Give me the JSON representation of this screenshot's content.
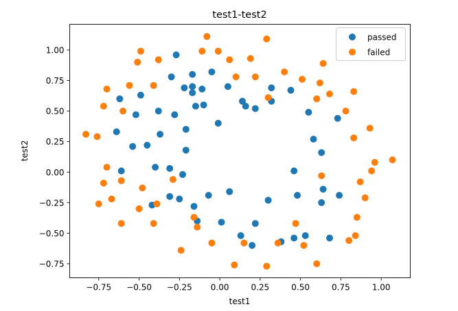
{
  "chart_data": {
    "type": "scatter",
    "title": "test1-test2",
    "xlabel": "test1",
    "ylabel": "test2",
    "xlim": [
      -0.93,
      1.18
    ],
    "ylim": [
      -0.865,
      1.21
    ],
    "xticks": [
      -0.75,
      -0.5,
      -0.25,
      0.0,
      0.25,
      0.5,
      0.75,
      1.0
    ],
    "yticks": [
      -0.75,
      -0.5,
      -0.25,
      0.0,
      0.25,
      0.5,
      0.75,
      1.0
    ],
    "xtick_labels": [
      "−0.75",
      "−0.50",
      "−0.25",
      "0.00",
      "0.25",
      "0.50",
      "0.75",
      "1.00"
    ],
    "ytick_labels": [
      "−0.75",
      "−0.50",
      "−0.25",
      "0.00",
      "0.25",
      "0.50",
      "0.75",
      "1.00"
    ],
    "grid": false,
    "legend_position": "top-right",
    "series": [
      {
        "name": "passed",
        "color": "#1f77b4",
        "points": [
          [
            -0.27,
            0.96
          ],
          [
            -0.05,
            0.82
          ],
          [
            -0.3,
            0.78
          ],
          [
            -0.17,
            0.8
          ],
          [
            -0.22,
            0.69
          ],
          [
            -0.17,
            0.7
          ],
          [
            -0.11,
            0.68
          ],
          [
            0.05,
            0.7
          ],
          [
            -0.17,
            0.65
          ],
          [
            -0.49,
            0.63
          ],
          [
            -0.62,
            0.6
          ],
          [
            -0.15,
            0.54
          ],
          [
            -0.1,
            0.55
          ],
          [
            -0.38,
            0.5
          ],
          [
            -0.52,
            0.47
          ],
          [
            -0.28,
            0.47
          ],
          [
            0.14,
            0.58
          ],
          [
            0.16,
            0.54
          ],
          [
            0.22,
            0.52
          ],
          [
            0.32,
            0.69
          ],
          [
            0.44,
            0.67
          ],
          [
            0.32,
            0.58
          ],
          [
            0.55,
            0.49
          ],
          [
            0.73,
            0.44
          ],
          [
            -0.01,
            0.4
          ],
          [
            -0.21,
            0.35
          ],
          [
            -0.64,
            0.33
          ],
          [
            -0.37,
            0.31
          ],
          [
            -0.54,
            0.21
          ],
          [
            -0.45,
            0.22
          ],
          [
            -0.21,
            0.18
          ],
          [
            0.58,
            0.27
          ],
          [
            0.63,
            0.16
          ],
          [
            -0.4,
            0.04
          ],
          [
            -0.61,
            0.01
          ],
          [
            -0.31,
            0.03
          ],
          [
            -0.23,
            -0.02
          ],
          [
            0.46,
            0.01
          ],
          [
            0.64,
            -0.14
          ],
          [
            -0.25,
            -0.22
          ],
          [
            -0.31,
            -0.2
          ],
          [
            -0.07,
            -0.19
          ],
          [
            0.06,
            -0.16
          ],
          [
            0.3,
            -0.23
          ],
          [
            0.48,
            -0.19
          ],
          [
            0.63,
            -0.25
          ],
          [
            0.74,
            -0.19
          ],
          [
            -0.42,
            -0.27
          ],
          [
            -0.16,
            -0.28
          ],
          [
            -0.14,
            -0.4
          ],
          [
            0.01,
            -0.41
          ],
          [
            0.22,
            -0.42
          ],
          [
            0.13,
            -0.52
          ],
          [
            0.2,
            -0.6
          ],
          [
            0.38,
            -0.57
          ],
          [
            0.46,
            -0.54
          ],
          [
            0.53,
            -0.52
          ],
          [
            0.68,
            -0.54
          ]
        ]
      },
      {
        "name": "failed",
        "color": "#ff7f0e",
        "points": [
          [
            -0.08,
            1.11
          ],
          [
            0.29,
            1.09
          ],
          [
            -0.49,
            0.99
          ],
          [
            -0.11,
            0.99
          ],
          [
            -0.01,
            0.99
          ],
          [
            0.19,
            0.93
          ],
          [
            -0.51,
            0.9
          ],
          [
            -0.38,
            0.92
          ],
          [
            0.06,
            0.92
          ],
          [
            0.64,
            0.89
          ],
          [
            0.4,
            0.82
          ],
          [
            0.1,
            0.78
          ],
          [
            0.22,
            0.78
          ],
          [
            0.51,
            0.76
          ],
          [
            0.62,
            0.73
          ],
          [
            -0.7,
            0.68
          ],
          [
            -0.56,
            0.71
          ],
          [
            -0.41,
            0.71
          ],
          [
            0.68,
            0.64
          ],
          [
            0.83,
            0.66
          ],
          [
            0.3,
            0.61
          ],
          [
            0.6,
            0.6
          ],
          [
            -0.72,
            0.54
          ],
          [
            -0.6,
            0.5
          ],
          [
            0.78,
            0.5
          ],
          [
            -0.83,
            0.31
          ],
          [
            -0.76,
            0.29
          ],
          [
            0.93,
            0.36
          ],
          [
            0.83,
            0.28
          ],
          [
            -0.7,
            0.04
          ],
          [
            0.96,
            0.08
          ],
          [
            1.07,
            0.1
          ],
          [
            0.94,
            0.01
          ],
          [
            -0.61,
            -0.07
          ],
          [
            -0.72,
            -0.09
          ],
          [
            -0.29,
            -0.06
          ],
          [
            0.63,
            -0.03
          ],
          [
            -0.48,
            -0.13
          ],
          [
            0.87,
            -0.08
          ],
          [
            -0.67,
            -0.22
          ],
          [
            -0.75,
            -0.26
          ],
          [
            -0.39,
            -0.26
          ],
          [
            -0.5,
            -0.3
          ],
          [
            0.9,
            -0.21
          ],
          [
            0.85,
            -0.37
          ],
          [
            -0.61,
            -0.42
          ],
          [
            -0.41,
            -0.42
          ],
          [
            -0.16,
            -0.37
          ],
          [
            -0.14,
            -0.45
          ],
          [
            0.47,
            -0.42
          ],
          [
            0.84,
            -0.52
          ],
          [
            0.8,
            -0.56
          ],
          [
            -0.05,
            -0.58
          ],
          [
            0.15,
            -0.58
          ],
          [
            0.36,
            -0.58
          ],
          [
            0.52,
            -0.6
          ],
          [
            -0.24,
            -0.64
          ],
          [
            0.6,
            -0.75
          ],
          [
            0.09,
            -0.76
          ],
          [
            0.29,
            -0.77
          ]
        ]
      }
    ]
  }
}
